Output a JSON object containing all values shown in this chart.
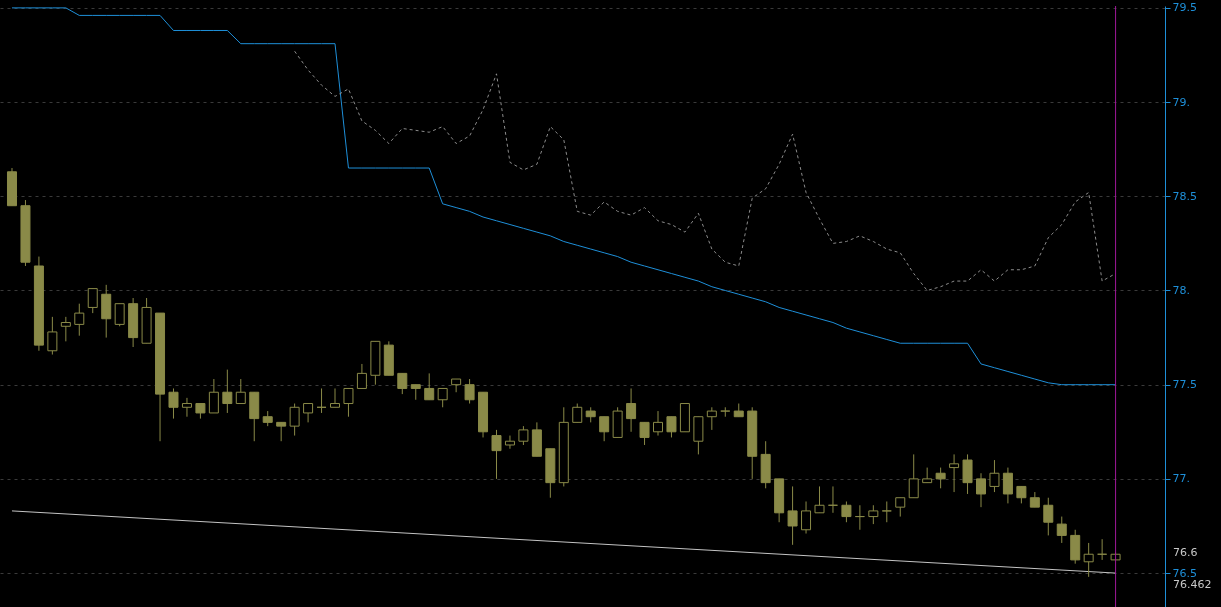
{
  "chart_data": {
    "type": "candlestick",
    "categories": [
      null,
      null,
      null,
      null,
      null,
      null,
      null,
      null,
      null,
      null,
      null,
      null,
      null,
      null,
      null,
      null,
      null,
      null,
      null,
      null,
      null,
      null,
      null,
      null,
      null,
      null,
      null,
      null,
      null,
      null,
      null,
      null,
      null,
      null,
      null,
      null,
      null,
      null,
      null,
      null,
      null,
      null,
      null,
      null,
      null,
      null,
      null,
      null,
      null,
      null,
      null,
      null,
      null,
      null,
      null,
      null,
      null,
      null,
      null,
      null,
      null,
      null,
      null,
      null,
      null,
      null,
      null,
      null,
      null,
      null,
      null,
      null,
      null,
      null,
      null,
      null,
      null,
      null,
      null,
      null,
      null,
      null,
      null
    ],
    "ylim": [
      76.32,
      79.51
    ],
    "yticks": [
      {
        "value": 76.5,
        "label": "76.5"
      },
      {
        "value": 77,
        "label": "77."
      },
      {
        "value": 77.5,
        "label": "77.5"
      },
      {
        "value": 78,
        "label": "78."
      },
      {
        "value": 78.5,
        "label": "78.5"
      },
      {
        "value": 79,
        "label": "79."
      },
      {
        "value": 79.5,
        "label": "79.5"
      }
    ],
    "tick_labels": "y",
    "grid": "y",
    "color": "#8a8a48",
    "ohlc": [
      [
        78.63,
        78.65,
        78.45,
        78.45
      ],
      [
        78.45,
        78.48,
        78.13,
        78.15
      ],
      [
        78.13,
        78.18,
        77.68,
        77.71
      ],
      [
        77.68,
        77.86,
        77.66,
        77.78
      ],
      [
        77.81,
        77.86,
        77.73,
        77.83
      ],
      [
        77.82,
        77.93,
        77.76,
        77.88
      ],
      [
        77.91,
        78.01,
        77.88,
        78.01
      ],
      [
        77.98,
        78.03,
        77.75,
        77.85
      ],
      [
        77.82,
        77.93,
        77.81,
        77.93
      ],
      [
        77.93,
        77.96,
        77.7,
        77.75
      ],
      [
        77.72,
        77.96,
        77.72,
        77.91
      ],
      [
        77.88,
        77.88,
        77.2,
        77.45
      ],
      [
        77.46,
        77.48,
        77.32,
        77.38
      ],
      [
        77.38,
        77.43,
        77.33,
        77.4
      ],
      [
        77.4,
        77.4,
        77.32,
        77.35
      ],
      [
        77.35,
        77.53,
        77.35,
        77.46
      ],
      [
        77.46,
        77.58,
        77.35,
        77.4
      ],
      [
        77.4,
        77.53,
        77.4,
        77.46
      ],
      [
        77.46,
        77.46,
        77.2,
        77.32
      ],
      [
        77.33,
        77.36,
        77.28,
        77.3
      ],
      [
        77.3,
        77.3,
        77.2,
        77.28
      ],
      [
        77.28,
        77.4,
        77.23,
        77.38
      ],
      [
        77.35,
        77.4,
        77.3,
        77.4
      ],
      [
        77.38,
        77.48,
        77.35,
        77.38
      ],
      [
        77.38,
        77.48,
        77.38,
        77.4
      ],
      [
        77.4,
        77.48,
        77.33,
        77.48
      ],
      [
        77.48,
        77.61,
        77.48,
        77.56
      ],
      [
        77.55,
        77.73,
        77.5,
        77.73
      ],
      [
        77.71,
        77.73,
        77.55,
        77.55
      ],
      [
        77.56,
        77.56,
        77.45,
        77.48
      ],
      [
        77.5,
        77.5,
        77.42,
        77.48
      ],
      [
        77.48,
        77.56,
        77.42,
        77.42
      ],
      [
        77.42,
        77.48,
        77.38,
        77.48
      ],
      [
        77.5,
        77.53,
        77.46,
        77.53
      ],
      [
        77.5,
        77.53,
        77.4,
        77.42
      ],
      [
        77.46,
        77.46,
        77.22,
        77.25
      ],
      [
        77.23,
        77.26,
        77.0,
        77.15
      ],
      [
        77.18,
        77.23,
        77.16,
        77.2
      ],
      [
        77.2,
        77.28,
        77.18,
        77.26
      ],
      [
        77.26,
        77.3,
        77.12,
        77.12
      ],
      [
        77.16,
        77.16,
        76.9,
        76.98
      ],
      [
        76.98,
        77.38,
        76.96,
        77.3
      ],
      [
        77.3,
        77.4,
        77.3,
        77.38
      ],
      [
        77.36,
        77.38,
        77.3,
        77.33
      ],
      [
        77.33,
        77.33,
        77.2,
        77.25
      ],
      [
        77.22,
        77.38,
        77.22,
        77.36
      ],
      [
        77.4,
        77.48,
        77.25,
        77.32
      ],
      [
        77.3,
        77.3,
        77.18,
        77.22
      ],
      [
        77.25,
        77.36,
        77.23,
        77.3
      ],
      [
        77.33,
        77.33,
        77.22,
        77.25
      ],
      [
        77.25,
        77.4,
        77.25,
        77.4
      ],
      [
        77.2,
        77.33,
        77.13,
        77.33
      ],
      [
        77.33,
        77.38,
        77.26,
        77.36
      ],
      [
        77.36,
        77.38,
        77.33,
        77.36
      ],
      [
        77.36,
        77.4,
        77.33,
        77.33
      ],
      [
        77.36,
        77.38,
        77.0,
        77.12
      ],
      [
        77.13,
        77.2,
        76.95,
        76.98
      ],
      [
        77.0,
        77.0,
        76.77,
        76.82
      ],
      [
        76.83,
        76.96,
        76.65,
        76.75
      ],
      [
        76.73,
        76.88,
        76.71,
        76.83
      ],
      [
        76.82,
        76.96,
        76.82,
        76.86
      ],
      [
        76.86,
        76.96,
        76.82,
        76.86
      ],
      [
        76.86,
        76.88,
        76.77,
        76.8
      ],
      [
        76.8,
        76.86,
        76.73,
        76.8
      ],
      [
        76.8,
        76.86,
        76.76,
        76.83
      ],
      [
        76.83,
        76.88,
        76.77,
        76.83
      ],
      [
        76.85,
        76.9,
        76.8,
        76.9
      ],
      [
        76.9,
        77.13,
        76.9,
        77.0
      ],
      [
        76.98,
        77.06,
        76.98,
        77.0
      ],
      [
        77.03,
        77.06,
        76.95,
        77.0
      ],
      [
        77.06,
        77.13,
        76.93,
        77.08
      ],
      [
        77.1,
        77.13,
        76.92,
        76.98
      ],
      [
        77.0,
        77.03,
        76.85,
        76.92
      ],
      [
        76.96,
        77.1,
        76.93,
        77.03
      ],
      [
        77.03,
        77.06,
        76.87,
        76.92
      ],
      [
        76.96,
        76.96,
        76.87,
        76.9
      ],
      [
        76.9,
        76.93,
        76.85,
        76.85
      ],
      [
        76.86,
        76.9,
        76.7,
        76.77
      ],
      [
        76.76,
        76.8,
        76.66,
        76.7
      ],
      [
        76.7,
        76.73,
        76.55,
        76.57
      ],
      [
        76.56,
        76.66,
        76.48,
        76.6
      ],
      [
        76.6,
        76.68,
        76.57,
        76.6
      ],
      [
        76.57,
        76.61,
        76.57,
        76.6
      ]
    ],
    "series": [
      {
        "type": "line",
        "color": "#1e8fd8",
        "values": [
          79.5,
          79.5,
          79.5,
          79.5,
          79.5,
          79.46,
          79.46,
          79.46,
          79.46,
          79.46,
          79.46,
          79.46,
          79.38,
          79.38,
          79.38,
          79.38,
          79.38,
          79.31,
          79.31,
          79.31,
          79.31,
          79.31,
          79.31,
          79.31,
          79.31,
          78.65,
          78.65,
          78.65,
          78.65,
          78.65,
          78.65,
          78.65,
          78.46,
          78.44,
          78.42,
          78.39,
          78.37,
          78.35,
          78.33,
          78.31,
          78.29,
          78.26,
          78.24,
          78.22,
          78.2,
          78.18,
          78.15,
          78.13,
          78.11,
          78.09,
          78.07,
          78.05,
          78.02,
          78.0,
          77.98,
          77.96,
          77.94,
          77.91,
          77.89,
          77.87,
          77.85,
          77.83,
          77.8,
          77.78,
          77.76,
          77.74,
          77.72,
          77.72,
          77.72,
          77.72,
          77.72,
          77.72,
          77.61,
          77.59,
          77.57,
          77.55,
          77.53,
          77.51,
          77.5,
          77.5,
          77.5,
          77.5,
          77.5
        ]
      },
      {
        "type": "line",
        "color": "#8c8c8c",
        "line_style": "dashed",
        "values": [
          null,
          null,
          null,
          null,
          null,
          null,
          null,
          null,
          null,
          null,
          null,
          null,
          null,
          null,
          null,
          null,
          null,
          null,
          null,
          null,
          null,
          79.27,
          79.17,
          79.09,
          79.03,
          79.07,
          78.9,
          78.85,
          78.78,
          78.86,
          78.85,
          78.84,
          78.87,
          78.78,
          78.82,
          78.96,
          79.15,
          78.68,
          78.64,
          78.67,
          78.87,
          78.8,
          78.42,
          78.4,
          78.47,
          78.42,
          78.4,
          78.44,
          78.37,
          78.35,
          78.31,
          78.41,
          78.22,
          78.15,
          78.13,
          78.49,
          78.54,
          78.67,
          78.83,
          78.52,
          78.38,
          78.25,
          78.26,
          78.29,
          78.26,
          78.22,
          78.2,
          78.09,
          78.0,
          78.02,
          78.05,
          78.05,
          78.11,
          78.05,
          78.11,
          78.11,
          78.13,
          78.28,
          78.35,
          78.47,
          78.52,
          78.05,
          78.09
        ]
      },
      {
        "type": "line",
        "color": "#c4c4c4",
        "values": [
          76.83,
          null,
          null,
          null,
          null,
          null,
          null,
          null,
          null,
          null,
          null,
          null,
          null,
          null,
          null,
          null,
          null,
          null,
          null,
          null,
          null,
          null,
          null,
          null,
          null,
          null,
          null,
          null,
          null,
          null,
          null,
          null,
          null,
          null,
          null,
          null,
          null,
          null,
          null,
          null,
          null,
          null,
          null,
          null,
          null,
          null,
          null,
          null,
          null,
          null,
          null,
          null,
          null,
          null,
          null,
          null,
          null,
          null,
          null,
          null,
          null,
          null,
          null,
          null,
          null,
          null,
          null,
          null,
          null,
          null,
          null,
          null,
          null,
          null,
          null,
          null,
          null,
          null,
          null,
          null,
          null,
          null,
          76.5
        ]
      }
    ],
    "ref_lines": [
      {
        "axis": "x",
        "color": "#a0189a"
      }
    ],
    "annotations": [
      "76.6",
      "76.462"
    ]
  }
}
